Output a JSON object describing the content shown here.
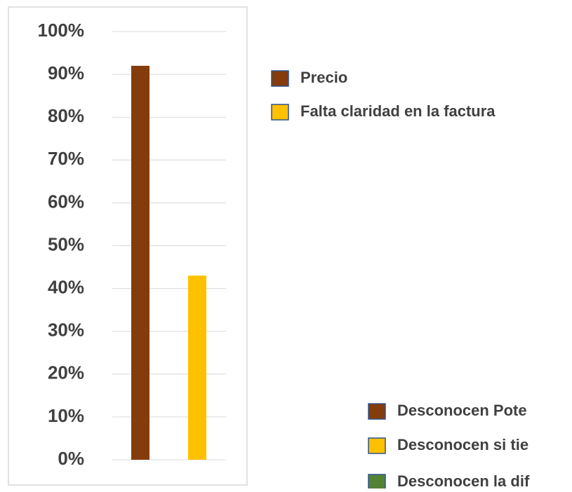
{
  "chart_data": {
    "type": "bar",
    "series": [
      {
        "name": "Precio",
        "color": "#843c0c",
        "values": [
          92
        ]
      },
      {
        "name": "Falta claridad en la factura",
        "color": "#ffc000",
        "values": [
          43
        ]
      }
    ],
    "ylim": [
      0,
      100
    ],
    "yticks": [
      {
        "value": 0,
        "label": "0%"
      },
      {
        "value": 10,
        "label": "10%"
      },
      {
        "value": 20,
        "label": "20%"
      },
      {
        "value": 30,
        "label": "30%"
      },
      {
        "value": 40,
        "label": "40%"
      },
      {
        "value": 50,
        "label": "50%"
      },
      {
        "value": 60,
        "label": "60%"
      },
      {
        "value": 70,
        "label": "70%"
      },
      {
        "value": 80,
        "label": "80%"
      },
      {
        "value": 90,
        "label": "90%"
      },
      {
        "value": 100,
        "label": "100%"
      }
    ],
    "grid": true,
    "other_legend": [
      {
        "name": "Desconocen Pote",
        "color": "#843c0c"
      },
      {
        "name": "Desconocen si tie",
        "color": "#ffc000"
      },
      {
        "name": "Desconocen la dif",
        "color": "#548235"
      }
    ]
  }
}
